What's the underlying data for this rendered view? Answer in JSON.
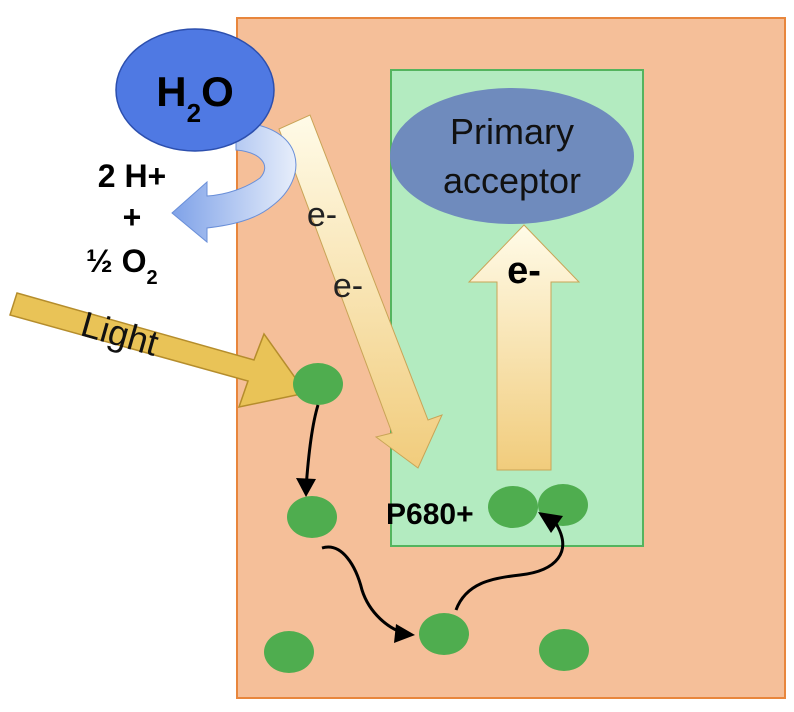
{
  "water": {
    "main": "H",
    "subscript": "2",
    "suffix": "O"
  },
  "products": {
    "hydrogen": "2 H+",
    "plus": "+",
    "oxygen_main": "½ O",
    "oxygen_subscript": "2"
  },
  "light_label": "Light",
  "electron_labels": [
    "e-",
    "e-"
  ],
  "primary_acceptor": {
    "line1": "Primary",
    "line2": "acceptor"
  },
  "up_electron_label": "e-",
  "reaction_center_label": "P680+",
  "colors": {
    "thylakoid_fill": "#f5bf99",
    "thylakoid_stroke": "#e8863c",
    "photosystem_fill": "#b3ebc0",
    "photosystem_stroke": "#54b45e",
    "pigment": "#4fad4f",
    "water_fill": "#4f79e3",
    "acceptor_fill": "#6f8bbd",
    "light_arrow": "#e9c357"
  }
}
